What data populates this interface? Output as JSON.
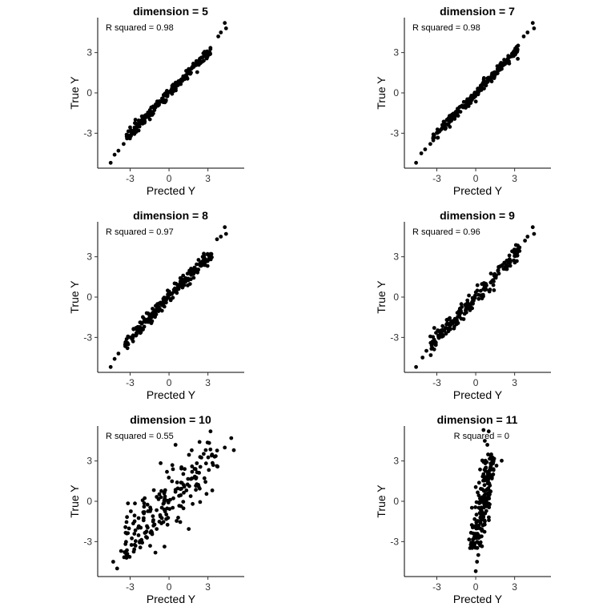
{
  "chart_data": [
    {
      "type": "scatter",
      "title": "dimension = 5",
      "annotation": "R squared = 0.98",
      "xlabel": "Prected Y",
      "ylabel": "True Y",
      "xticks": [
        "-3",
        "0",
        "3"
      ],
      "yticks": [
        "-3",
        "0",
        "3"
      ],
      "xlim": [
        -5.5,
        5.8
      ],
      "ylim": [
        -5.6,
        5.6
      ],
      "points": {
        "kind": "linear",
        "n": 200,
        "slope": 1.0,
        "intercept": 0.0,
        "noise": 0.18,
        "x_range": [
          -3.3,
          3.2
        ],
        "extremes": [
          [
            -4.5,
            -5.2
          ],
          [
            -4.2,
            -4.6
          ],
          [
            -3.9,
            -4.3
          ],
          [
            -3.5,
            -3.8
          ],
          [
            4.3,
            5.2
          ],
          [
            4.4,
            4.8
          ],
          [
            4.0,
            4.5
          ],
          [
            3.8,
            4.2
          ]
        ]
      }
    },
    {
      "type": "scatter",
      "title": "dimension = 7",
      "annotation": "R squared = 0.98",
      "xlabel": "Prected Y",
      "ylabel": "True Y",
      "xticks": [
        "-3",
        "0",
        "3"
      ],
      "yticks": [
        "-3",
        "0",
        "3"
      ],
      "xlim": [
        -5.5,
        5.8
      ],
      "ylim": [
        -5.6,
        5.6
      ],
      "points": {
        "kind": "linear",
        "n": 200,
        "slope": 1.0,
        "intercept": 0.0,
        "noise": 0.2,
        "x_range": [
          -3.3,
          3.3
        ],
        "extremes": [
          [
            -4.6,
            -5.2
          ],
          [
            -4.2,
            -4.5
          ],
          [
            -3.9,
            -4.2
          ],
          [
            -3.5,
            -3.8
          ],
          [
            4.4,
            5.2
          ],
          [
            4.5,
            4.8
          ],
          [
            4.0,
            4.5
          ],
          [
            3.7,
            4.2
          ]
        ]
      }
    },
    {
      "type": "scatter",
      "title": "dimension = 8",
      "annotation": "R squared = 0.97",
      "xlabel": "Prected Y",
      "ylabel": "True Y",
      "xticks": [
        "-3",
        "0",
        "3"
      ],
      "yticks": [
        "-3",
        "0",
        "3"
      ],
      "xlim": [
        -5.5,
        5.8
      ],
      "ylim": [
        -5.6,
        5.6
      ],
      "points": {
        "kind": "linear",
        "n": 200,
        "slope": 1.0,
        "intercept": 0.0,
        "noise": 0.28,
        "x_range": [
          -3.4,
          3.3
        ],
        "extremes": [
          [
            -4.5,
            -5.2
          ],
          [
            -4.2,
            -4.6
          ],
          [
            -3.9,
            -4.2
          ],
          [
            -3.2,
            -3.8
          ],
          [
            4.3,
            5.2
          ],
          [
            4.4,
            4.7
          ],
          [
            4.0,
            4.5
          ],
          [
            3.7,
            4.3
          ]
        ]
      }
    },
    {
      "type": "scatter",
      "title": "dimension = 9",
      "annotation": "R squared = 0.96",
      "xlabel": "Prected Y",
      "ylabel": "True Y",
      "xticks": [
        "-3",
        "0",
        "3"
      ],
      "yticks": [
        "-3",
        "0",
        "3"
      ],
      "xlim": [
        -5.5,
        5.8
      ],
      "ylim": [
        -5.6,
        5.6
      ],
      "points": {
        "kind": "linear",
        "n": 200,
        "slope": 1.0,
        "intercept": 0.0,
        "noise": 0.35,
        "x_range": [
          -3.5,
          3.4
        ],
        "extremes": [
          [
            -4.6,
            -5.2
          ],
          [
            -4.1,
            -4.5
          ],
          [
            -3.8,
            -4.0
          ],
          [
            -3.4,
            -3.6
          ],
          [
            4.4,
            5.2
          ],
          [
            4.5,
            4.7
          ],
          [
            4.0,
            4.5
          ],
          [
            3.8,
            4.2
          ]
        ]
      }
    },
    {
      "type": "scatter",
      "title": "dimension = 10",
      "annotation": "R squared = 0.55",
      "xlabel": "Prected Y",
      "ylabel": "True Y",
      "xticks": [
        "-3",
        "0",
        "3"
      ],
      "yticks": [
        "-3",
        "0",
        "3"
      ],
      "xlim": [
        -5.5,
        5.8
      ],
      "ylim": [
        -5.6,
        5.6
      ],
      "points": {
        "kind": "linear",
        "n": 200,
        "slope": 0.95,
        "intercept": 0.0,
        "noise": 1.05,
        "x_range": [
          -3.5,
          3.8
        ],
        "extremes": [
          [
            -4.0,
            -5.0
          ],
          [
            -4.3,
            -4.5
          ],
          [
            -3.7,
            -3.7
          ],
          [
            3.2,
            5.2
          ],
          [
            4.8,
            4.7
          ],
          [
            5.0,
            3.8
          ],
          [
            4.3,
            4.0
          ],
          [
            0.5,
            4.2
          ]
        ]
      }
    },
    {
      "type": "scatter",
      "title": "dimension = 11",
      "annotation": "R squared = 0",
      "xlabel": "Prected Y",
      "ylabel": "True Y",
      "xticks": [
        "-3",
        "0",
        "3"
      ],
      "yticks": [
        "-3",
        "0",
        "3"
      ],
      "xlim": [
        -5.5,
        5.8
      ],
      "ylim": [
        -5.6,
        5.6
      ],
      "points": {
        "kind": "vertical",
        "n": 200,
        "x_center": 0.6,
        "x_spread": 0.28,
        "slope": 0.17,
        "y_range": [
          -3.5,
          3.5
        ],
        "extremes": [
          [
            0.0,
            -5.2
          ],
          [
            0.1,
            -4.5
          ],
          [
            0.2,
            -4.0
          ],
          [
            0.6,
            5.3
          ],
          [
            1.0,
            5.2
          ],
          [
            0.7,
            4.5
          ],
          [
            0.9,
            4.2
          ]
        ]
      }
    }
  ]
}
